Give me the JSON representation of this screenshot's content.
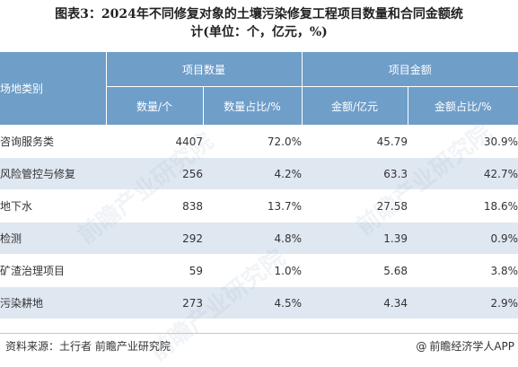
{
  "title": {
    "line1": "图表3：2024年不同修复对象的土壤污染修复工程项目数量和合同金额统",
    "line2": "计(单位：个，亿元，%)"
  },
  "table": {
    "header": {
      "category": "场地类别",
      "group_count": "项目数量",
      "group_amount": "项目金额",
      "col_count": "数量/个",
      "col_count_pct": "数量占比/%",
      "col_amount": "金额/亿元",
      "col_amount_pct": "金额占比/%"
    },
    "rows": [
      {
        "name": "咨询服务类",
        "count": "4407",
        "count_pct": "72.0%",
        "amount": "45.79",
        "amount_pct": "30.9%"
      },
      {
        "name": "风险管控与修复",
        "count": "256",
        "count_pct": "4.2%",
        "amount": "63.3",
        "amount_pct": "42.7%"
      },
      {
        "name": "地下水",
        "count": "838",
        "count_pct": "13.7%",
        "amount": "27.58",
        "amount_pct": "18.6%"
      },
      {
        "name": "检测",
        "count": "292",
        "count_pct": "4.8%",
        "amount": "1.39",
        "amount_pct": "0.9%"
      },
      {
        "name": "矿渣治理项目",
        "count": "59",
        "count_pct": "1.0%",
        "amount": "5.68",
        "amount_pct": "3.8%"
      },
      {
        "name": "污染耕地",
        "count": "273",
        "count_pct": "4.5%",
        "amount": "4.34",
        "amount_pct": "2.9%"
      }
    ]
  },
  "footer": {
    "source": "资料来源：土行者 前瞻产业研究院",
    "at_symbol": "@",
    "brand": "前瞻经济学人APP"
  },
  "colors": {
    "header_bg": "#6f9ec9",
    "stripe_bg": "#dfe7f1"
  },
  "watermarks": [
    "前瞻产业研究院",
    "前瞻产业研究院",
    "前瞻产业研究院"
  ]
}
